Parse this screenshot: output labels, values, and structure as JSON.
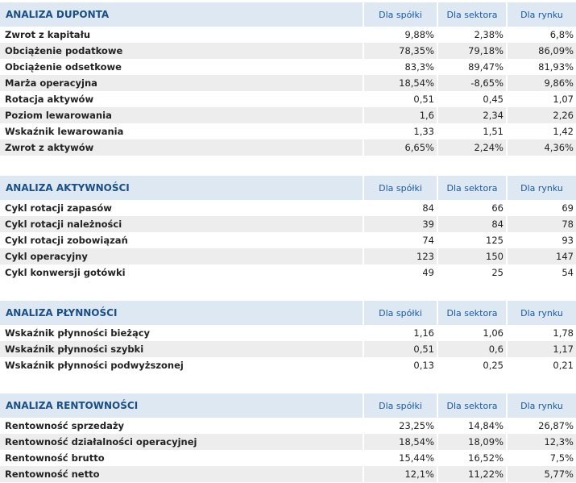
{
  "columns": [
    "Dla spółki",
    "Dla sektora",
    "Dla rynku"
  ],
  "sections": [
    {
      "title": "ANALIZA DUPONTA",
      "rows": [
        {
          "label": "Zwrot z kapitału",
          "v": [
            "9,88%",
            "2,38%",
            "6,8%"
          ]
        },
        {
          "label": "Obciążenie podatkowe",
          "v": [
            "78,35%",
            "79,18%",
            "86,09%"
          ]
        },
        {
          "label": "Obciążenie odsetkowe",
          "v": [
            "83,3%",
            "89,47%",
            "81,93%"
          ]
        },
        {
          "label": "Marża operacyjna",
          "v": [
            "18,54%",
            "-8,65%",
            "9,86%"
          ]
        },
        {
          "label": "Rotacja aktywów",
          "v": [
            "0,51",
            "0,45",
            "1,07"
          ]
        },
        {
          "label": "Poziom lewarowania",
          "v": [
            "1,6",
            "2,34",
            "2,26"
          ]
        },
        {
          "label": "Wskaźnik lewarowania",
          "v": [
            "1,33",
            "1,51",
            "1,42"
          ]
        },
        {
          "label": "Zwrot z aktywów",
          "v": [
            "6,65%",
            "2,24%",
            "4,36%"
          ]
        }
      ]
    },
    {
      "title": "ANALIZA AKTYWNOŚCI",
      "rows": [
        {
          "label": "Cykl rotacji zapasów",
          "v": [
            "84",
            "66",
            "69"
          ]
        },
        {
          "label": "Cykl rotacji należności",
          "v": [
            "39",
            "84",
            "78"
          ]
        },
        {
          "label": "Cykl rotacji zobowiązań",
          "v": [
            "74",
            "125",
            "93"
          ]
        },
        {
          "label": "Cykl operacyjny",
          "v": [
            "123",
            "150",
            "147"
          ]
        },
        {
          "label": "Cykl konwersji gotówki",
          "v": [
            "49",
            "25",
            "54"
          ]
        }
      ]
    },
    {
      "title": "ANALIZA PŁYNNOŚCI",
      "rows": [
        {
          "label": "Wskaźnik płynności bieżący",
          "v": [
            "1,16",
            "1,06",
            "1,78"
          ]
        },
        {
          "label": "Wskaźnik płynności szybki",
          "v": [
            "0,51",
            "0,6",
            "1,17"
          ]
        },
        {
          "label": "Wskaźnik płynności podwyższonej",
          "v": [
            "0,13",
            "0,25",
            "0,21"
          ]
        }
      ]
    },
    {
      "title": "ANALIZA RENTOWNOŚCI",
      "rows": [
        {
          "label": "Rentowność sprzedaży",
          "v": [
            "23,25%",
            "14,84%",
            "26,87%"
          ]
        },
        {
          "label": "Rentowność działalności operacyjnej",
          "v": [
            "18,54%",
            "18,09%",
            "12,3%"
          ]
        },
        {
          "label": "Rentowność brutto",
          "v": [
            "15,44%",
            "16,52%",
            "7,5%"
          ]
        },
        {
          "label": "Rentowność netto",
          "v": [
            "12,1%",
            "11,22%",
            "5,77%"
          ]
        }
      ]
    }
  ]
}
